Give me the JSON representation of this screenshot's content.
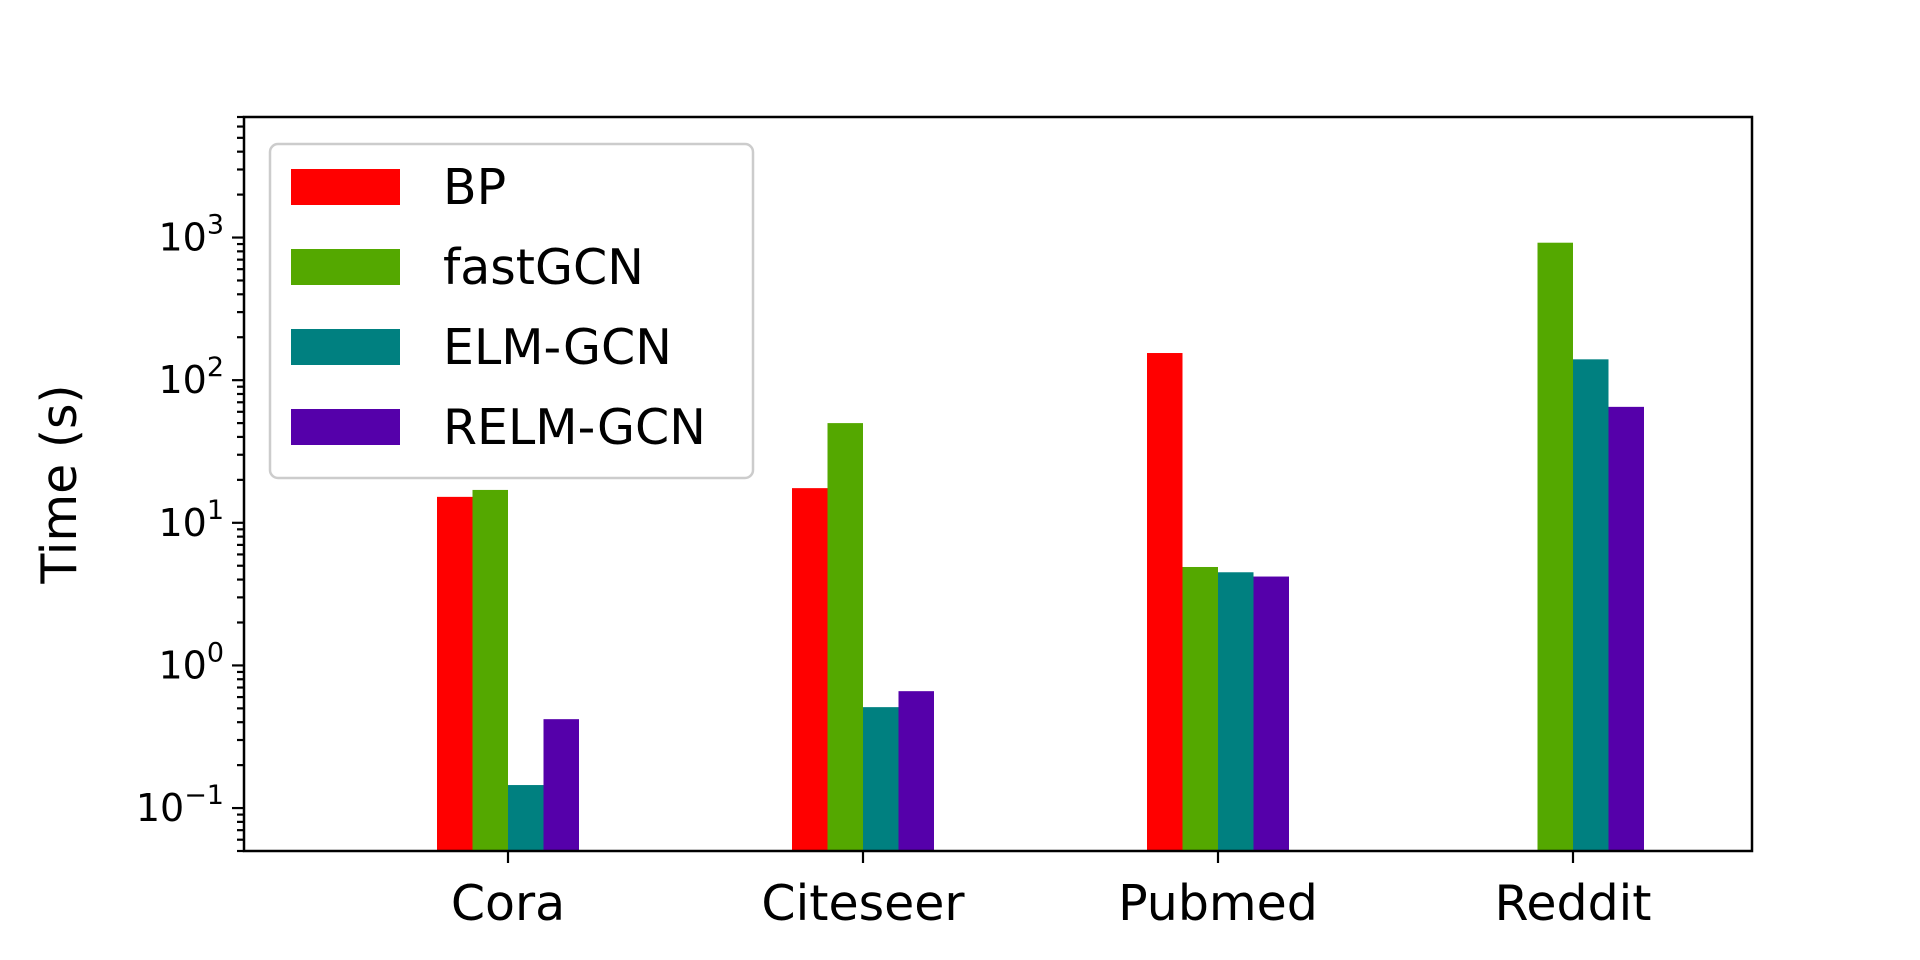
{
  "chart_data": {
    "type": "bar",
    "categories": [
      "Cora",
      "Citeseer",
      "Pubmed",
      "Reddit"
    ],
    "series": [
      {
        "name": "BP",
        "color": "#ff0000",
        "values": [
          15.2,
          17.5,
          155,
          null
        ]
      },
      {
        "name": "fastGCN",
        "color": "#54a800",
        "values": [
          17.0,
          50,
          4.9,
          920
        ]
      },
      {
        "name": "ELM-GCN",
        "color": "#008080",
        "values": [
          0.145,
          0.51,
          4.5,
          140
        ]
      },
      {
        "name": "RELM-GCN",
        "color": "#5500aa",
        "values": [
          0.42,
          0.66,
          4.2,
          65
        ]
      }
    ],
    "ylabel": "Time (s)",
    "xlabel": "",
    "yscale": "log",
    "ylim": [
      0.05,
      7000
    ],
    "yticks": [
      {
        "value": 0.1,
        "base": "10",
        "exp": "−1"
      },
      {
        "value": 1,
        "base": "10",
        "exp": "0"
      },
      {
        "value": 10,
        "base": "10",
        "exp": "1"
      },
      {
        "value": 100,
        "base": "10",
        "exp": "2"
      },
      {
        "value": 1000,
        "base": "10",
        "exp": "3"
      }
    ],
    "grid": false,
    "legend_position": "top-left"
  }
}
